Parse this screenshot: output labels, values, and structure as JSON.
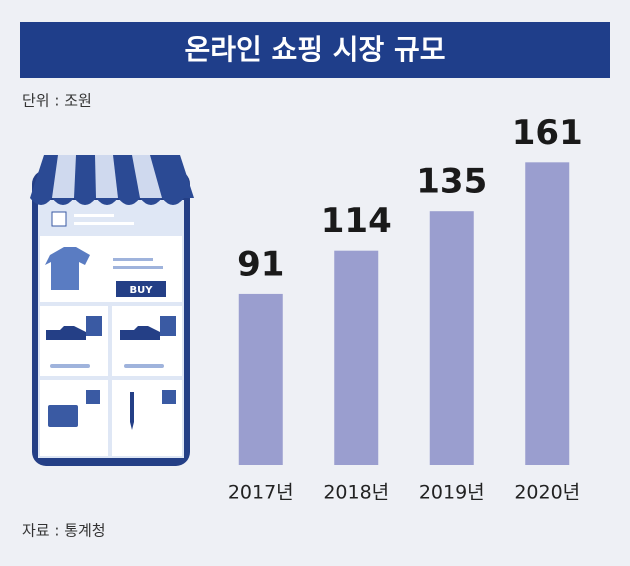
{
  "chart_data": {
    "type": "bar",
    "title": "온라인 쇼핑 시장 규모",
    "subtitle": "단위 : 조원",
    "source": "자료 : 통계청",
    "categories": [
      "2017년",
      "2018년",
      "2019년",
      "2020년"
    ],
    "values": [
      91,
      114,
      135,
      161
    ],
    "color": "#9a9ecf"
  },
  "illustration": {
    "button": "BUY"
  }
}
